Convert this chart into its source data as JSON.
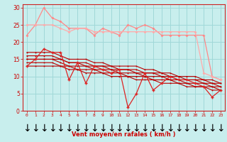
{
  "x": [
    0,
    1,
    2,
    3,
    4,
    5,
    6,
    7,
    8,
    9,
    10,
    11,
    12,
    13,
    14,
    15,
    16,
    17,
    18,
    19,
    20,
    21,
    22,
    23
  ],
  "line_pink1": [
    22,
    25,
    30,
    27,
    26,
    24,
    24,
    24,
    22,
    24,
    23,
    22,
    25,
    24,
    25,
    24,
    22,
    22,
    22,
    22,
    22,
    22,
    10,
    9
  ],
  "line_pink2": [
    25,
    25,
    25,
    25,
    24,
    23,
    24,
    24,
    23,
    23,
    23,
    23,
    23,
    23,
    23,
    23,
    23,
    23,
    23,
    23,
    23,
    11,
    10,
    9
  ],
  "line_zigzag": [
    13,
    15,
    18,
    17,
    17,
    9,
    14,
    8,
    13,
    12,
    11,
    12,
    1,
    5,
    11,
    6,
    8,
    10,
    9,
    9,
    8,
    7,
    4,
    6
  ],
  "line_reg1": [
    17,
    17,
    17,
    17,
    16,
    15,
    15,
    15,
    14,
    14,
    13,
    13,
    13,
    13,
    12,
    12,
    11,
    11,
    10,
    10,
    10,
    9,
    9,
    8
  ],
  "line_reg2": [
    16,
    16,
    16,
    16,
    15,
    14,
    14,
    14,
    13,
    13,
    13,
    12,
    12,
    12,
    11,
    11,
    11,
    10,
    10,
    9,
    9,
    9,
    8,
    8
  ],
  "line_reg3": [
    15,
    15,
    15,
    15,
    15,
    14,
    14,
    13,
    13,
    13,
    12,
    12,
    12,
    11,
    11,
    11,
    10,
    10,
    9,
    9,
    9,
    8,
    8,
    7
  ],
  "line_reg4": [
    15,
    15,
    15,
    15,
    14,
    13,
    13,
    13,
    12,
    12,
    12,
    11,
    11,
    11,
    10,
    10,
    10,
    9,
    9,
    8,
    8,
    8,
    7,
    7
  ],
  "line_reg5": [
    14,
    14,
    14,
    14,
    13,
    13,
    12,
    12,
    12,
    11,
    11,
    11,
    10,
    10,
    10,
    9,
    9,
    9,
    8,
    8,
    7,
    7,
    7,
    6
  ],
  "line_reg6": [
    13,
    13,
    13,
    13,
    13,
    12,
    12,
    11,
    11,
    11,
    10,
    10,
    10,
    9,
    9,
    9,
    8,
    8,
    8,
    7,
    7,
    7,
    6,
    6
  ],
  "bg_color": "#c8eeed",
  "grid_color": "#a0d8d8",
  "xlabel": "Vent moyen/en rafales ( km/h )",
  "ylim": [
    0,
    31
  ],
  "xlim": [
    -0.5,
    23.5
  ],
  "yticks": [
    0,
    5,
    10,
    15,
    20,
    25,
    30
  ],
  "xticks": [
    0,
    1,
    2,
    3,
    4,
    5,
    6,
    7,
    8,
    9,
    10,
    11,
    12,
    13,
    14,
    15,
    16,
    17,
    18,
    19,
    20,
    21,
    22,
    23
  ],
  "color_pink1": "#ff8888",
  "color_pink2": "#ffaaaa",
  "color_zigzag": "#dd2222",
  "color_reg": "#bb0000",
  "color_text": "#cc0000",
  "color_spine": "#cc2222"
}
